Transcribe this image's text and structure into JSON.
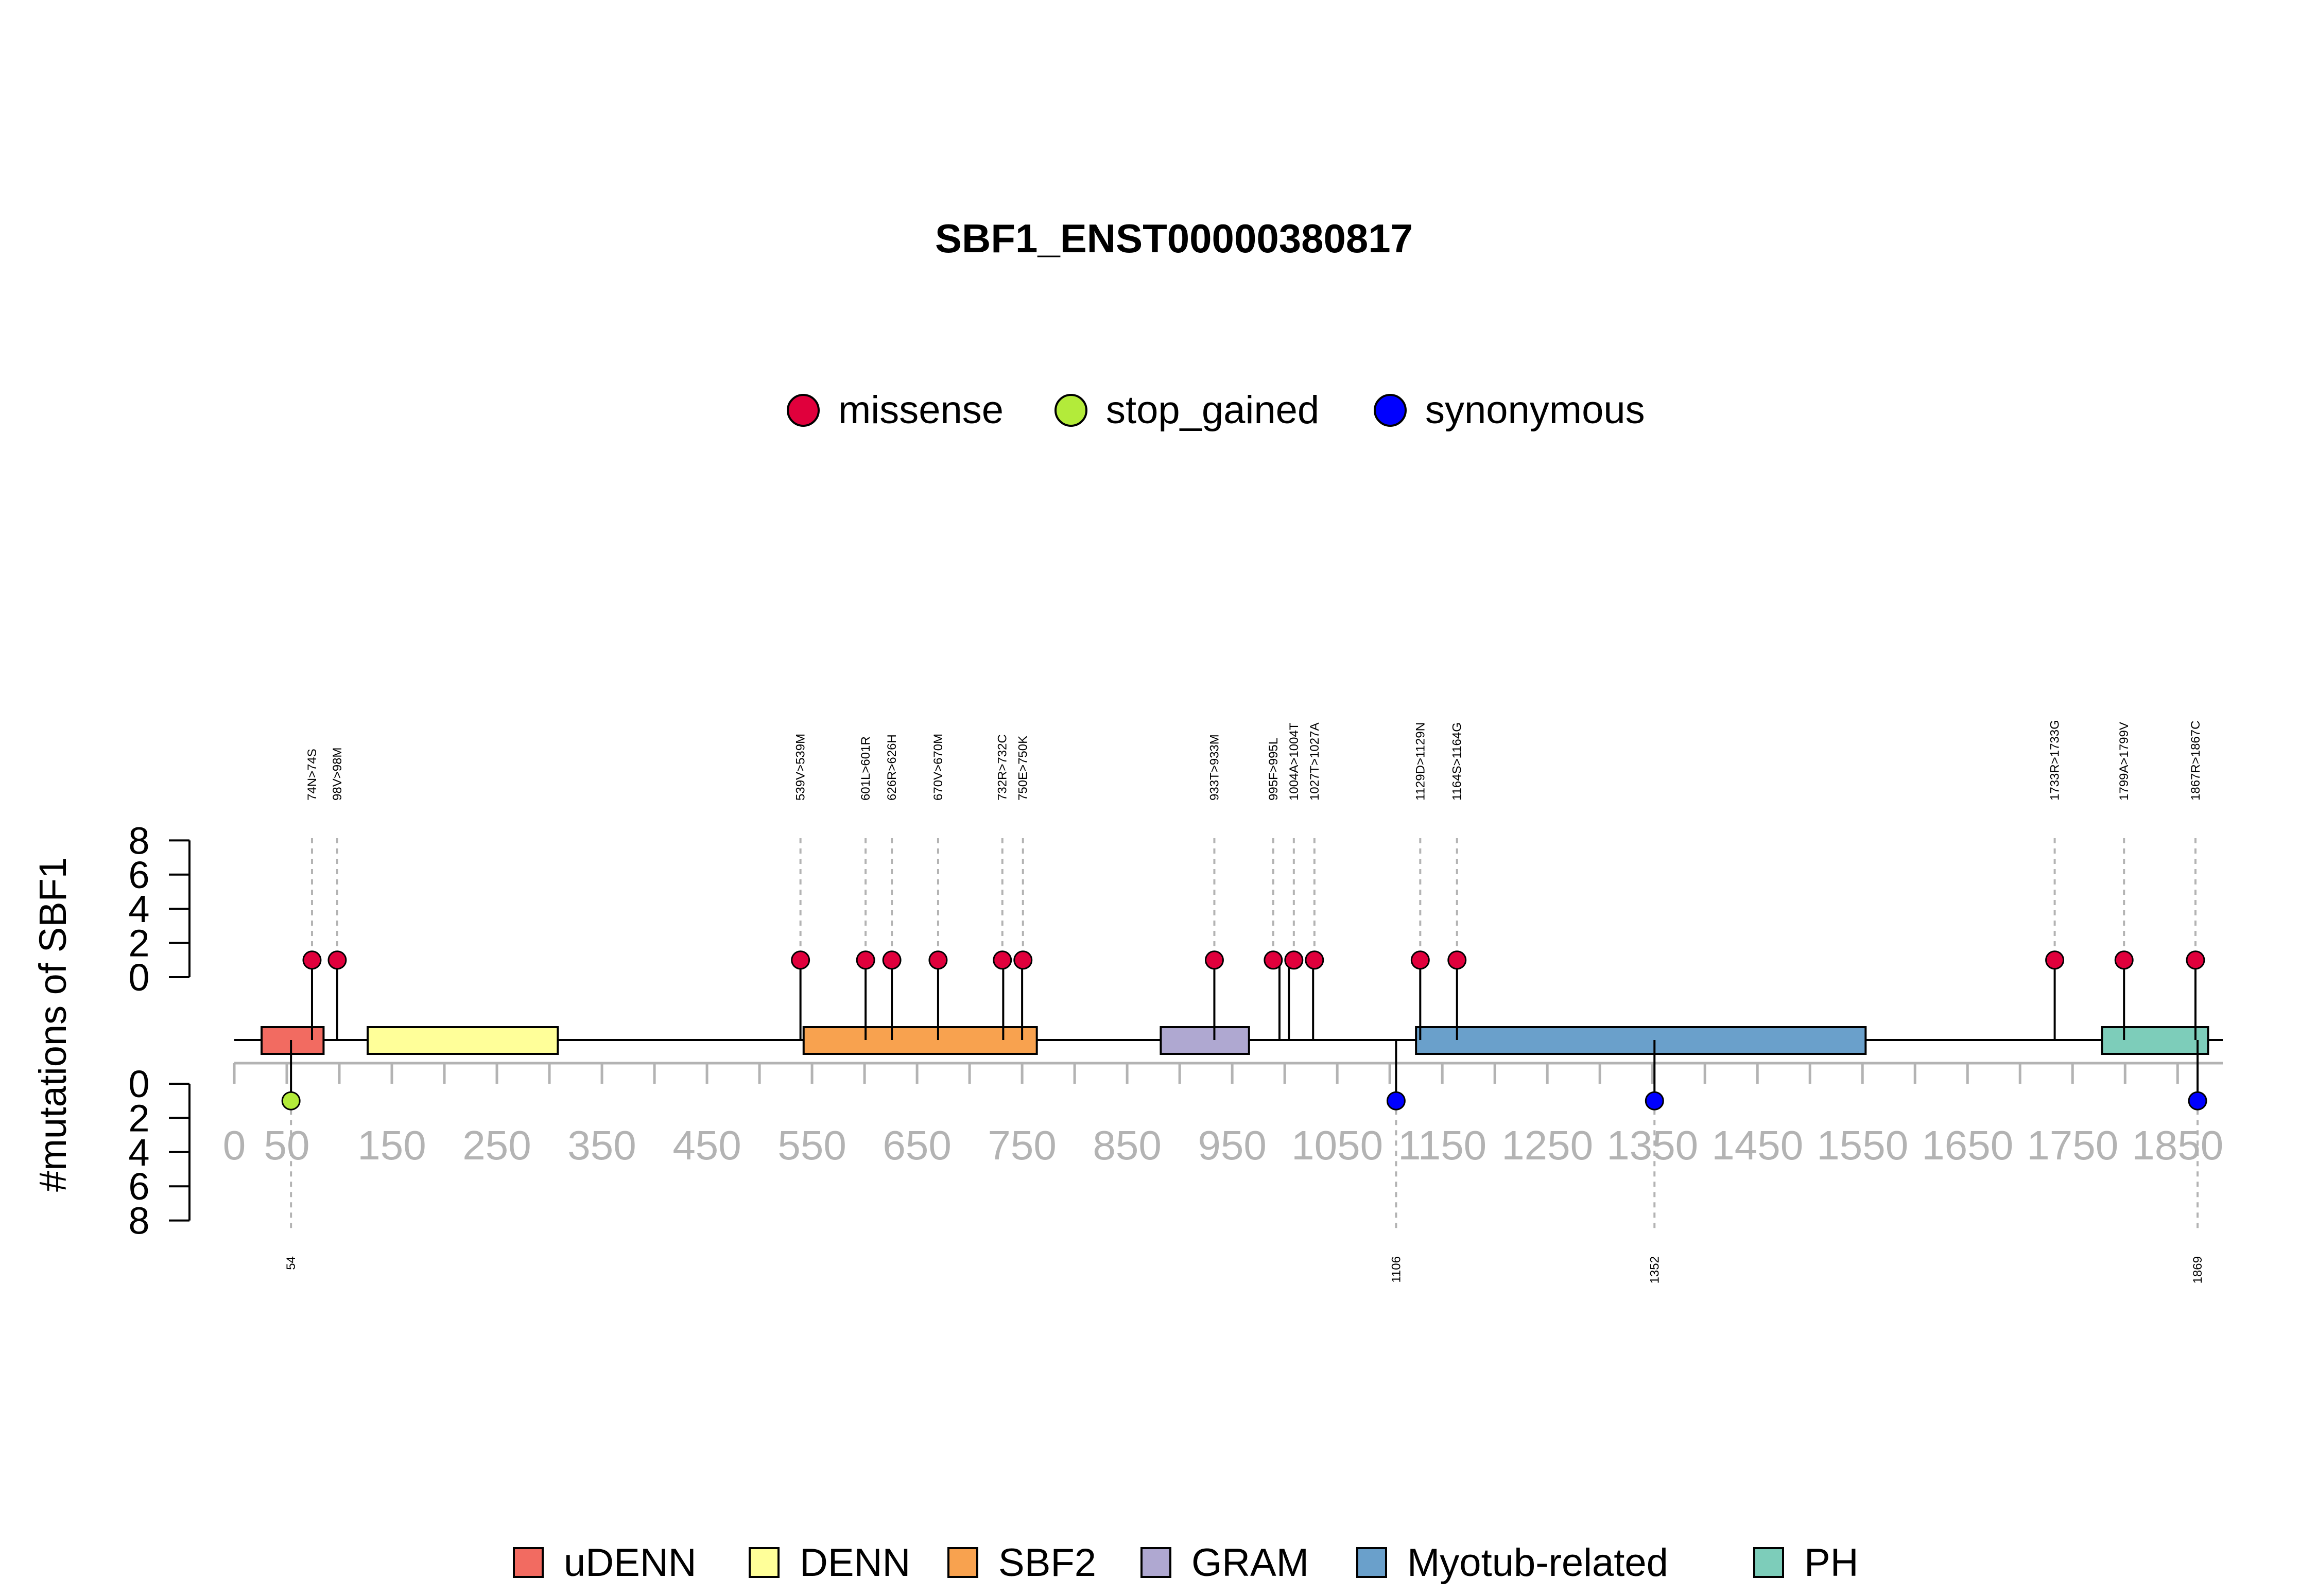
{
  "chart_data": {
    "type": "lollipop",
    "title": "SBF1_ENST00000380817",
    "ylabel": "#mutations of SBF1",
    "protein_length": 1893,
    "xlim": [
      0,
      1893
    ],
    "x_ticks": [
      0,
      50,
      150,
      250,
      350,
      450,
      550,
      650,
      750,
      850,
      950,
      1050,
      1150,
      1250,
      1350,
      1450,
      1550,
      1650,
      1750,
      1850
    ],
    "y_upper_ticks": [
      0,
      2,
      4,
      6,
      8
    ],
    "y_lower_ticks": [
      0,
      2,
      4,
      6,
      8
    ],
    "mutation_legend": [
      {
        "label": "missense",
        "color": "#E0003C"
      },
      {
        "label": "stop_gained",
        "color": "#B3EB3A"
      },
      {
        "label": "synonymous",
        "color": "#0000FF"
      }
    ],
    "domains": [
      {
        "name": "uDENN",
        "start": 26,
        "end": 85,
        "color": "#F26B61"
      },
      {
        "name": "DENN",
        "start": 127,
        "end": 308,
        "color": "#FFFF99"
      },
      {
        "name": "SBF2",
        "start": 542,
        "end": 764,
        "color": "#F8A24F"
      },
      {
        "name": "GRAM",
        "start": 882,
        "end": 966,
        "color": "#AFA8D1"
      },
      {
        "name": "Myotub-related",
        "start": 1125,
        "end": 1553,
        "color": "#6AA0CB"
      },
      {
        "name": "PH",
        "start": 1778,
        "end": 1879,
        "color": "#7DCDBA"
      }
    ],
    "mutations_upper": [
      {
        "label": "74N>74S",
        "position": 74,
        "count": 1,
        "type": "missense"
      },
      {
        "label": "98V>98M",
        "position": 98,
        "count": 1,
        "type": "missense"
      },
      {
        "label": "539V>539M",
        "position": 539,
        "count": 1,
        "type": "missense"
      },
      {
        "label": "601L>601R",
        "position": 601,
        "count": 1,
        "type": "missense"
      },
      {
        "label": "626R>626H",
        "position": 626,
        "count": 1,
        "type": "missense"
      },
      {
        "label": "670V>670M",
        "position": 670,
        "count": 1,
        "type": "missense"
      },
      {
        "label": "732R>732C",
        "position": 732,
        "count": 1,
        "type": "missense"
      },
      {
        "label": "750E>750K",
        "position": 750,
        "count": 1,
        "type": "missense"
      },
      {
        "label": "933T>933M",
        "position": 933,
        "count": 1,
        "type": "missense"
      },
      {
        "label": "995F>995L",
        "position": 995,
        "count": 1,
        "type": "missense"
      },
      {
        "label": "1004A>1004T",
        "position": 1004,
        "count": 1,
        "type": "missense"
      },
      {
        "label": "1027T>1027A",
        "position": 1027,
        "count": 1,
        "type": "missense"
      },
      {
        "label": "1129D>1129N",
        "position": 1129,
        "count": 1,
        "type": "missense"
      },
      {
        "label": "1164S>1164G",
        "position": 1164,
        "count": 1,
        "type": "missense"
      },
      {
        "label": "1733R>1733G",
        "position": 1733,
        "count": 1,
        "type": "missense"
      },
      {
        "label": "1799A>1799V",
        "position": 1799,
        "count": 1,
        "type": "missense"
      },
      {
        "label": "1867R>1867C",
        "position": 1867,
        "count": 1,
        "type": "missense"
      }
    ],
    "mutations_lower": [
      {
        "label": "54",
        "position": 54,
        "count": 1,
        "type": "stop_gained"
      },
      {
        "label": "1106",
        "position": 1106,
        "count": 1,
        "type": "synonymous"
      },
      {
        "label": "1352",
        "position": 1352,
        "count": 1,
        "type": "synonymous"
      },
      {
        "label": "1869",
        "position": 1869,
        "count": 1,
        "type": "synonymous"
      }
    ]
  }
}
